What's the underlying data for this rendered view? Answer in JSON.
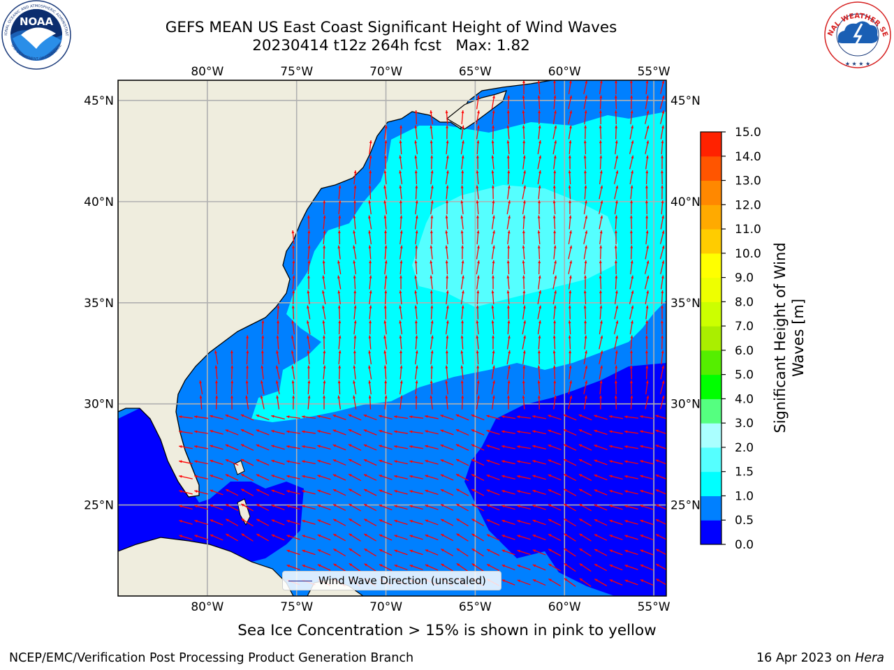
{
  "header": {
    "title_line1": "GEFS MEAN US East Coast Significant Height of Wind Waves",
    "title_date": "20230414 t12z 264h fcst",
    "title_max": "Max: 1.82"
  },
  "logos": {
    "left": {
      "name": "NOAA",
      "arc_text": "NATIONAL OCEANIC AND ATMOSPHERIC ADMINISTRATION",
      "bottom_text": "U.S. DEPARTMENT OF COMMERCE"
    },
    "right": {
      "name": "NATIONAL WEATHER SERVICE",
      "arc_text": "NATIONAL WEATHER SERVICE"
    }
  },
  "map": {
    "projection": "PlateCarree",
    "lon_range": [
      -85,
      -54.3
    ],
    "lat_range": [
      20.5,
      46
    ],
    "lon_ticks": [
      {
        "value": -80,
        "label": "80°W"
      },
      {
        "value": -75,
        "label": "75°W"
      },
      {
        "value": -70,
        "label": "70°W"
      },
      {
        "value": -65,
        "label": "65°W"
      },
      {
        "value": -60,
        "label": "60°W"
      },
      {
        "value": -55,
        "label": "55°W"
      }
    ],
    "lat_ticks": [
      {
        "value": 45,
        "label": "45°N"
      },
      {
        "value": 40,
        "label": "40°N"
      },
      {
        "value": 35,
        "label": "35°N"
      },
      {
        "value": 30,
        "label": "30°N"
      },
      {
        "value": 25,
        "label": "25°N"
      }
    ],
    "gridlines": true,
    "land_color": "#efedde",
    "vector_color": "#ff0000",
    "legend": {
      "label": "Wind Wave Direction (unscaled)",
      "placement": "lower center"
    }
  },
  "colorbar": {
    "label_line1": "Significant Height of Wind",
    "label_line2": "Waves [m]",
    "ticks": [
      "0.0",
      "0.5",
      "1.0",
      "1.5",
      "2.0",
      "3.0",
      "4.0",
      "5.0",
      "6.0",
      "7.0",
      "8.0",
      "9.0",
      "10.0",
      "11.0",
      "12.0",
      "13.0",
      "14.0",
      "15.0"
    ],
    "colors": [
      "#0000ff",
      "#0080ff",
      "#00ffff",
      "#55ffff",
      "#aaffff",
      "#55ff80",
      "#00ff00",
      "#55ee00",
      "#aaee00",
      "#ccff00",
      "#eeff00",
      "#ffff00",
      "#ffcc00",
      "#ffaa00",
      "#ff8800",
      "#ff5500",
      "#ff2200"
    ]
  },
  "footer": {
    "ice_note": "Sea Ice Concentration > 15% is shown in pink to yellow",
    "branch": "NCEP/EMC/Verification Post Processing Product Generation Branch",
    "date": "16 Apr 2023 on",
    "host": "Hera"
  }
}
